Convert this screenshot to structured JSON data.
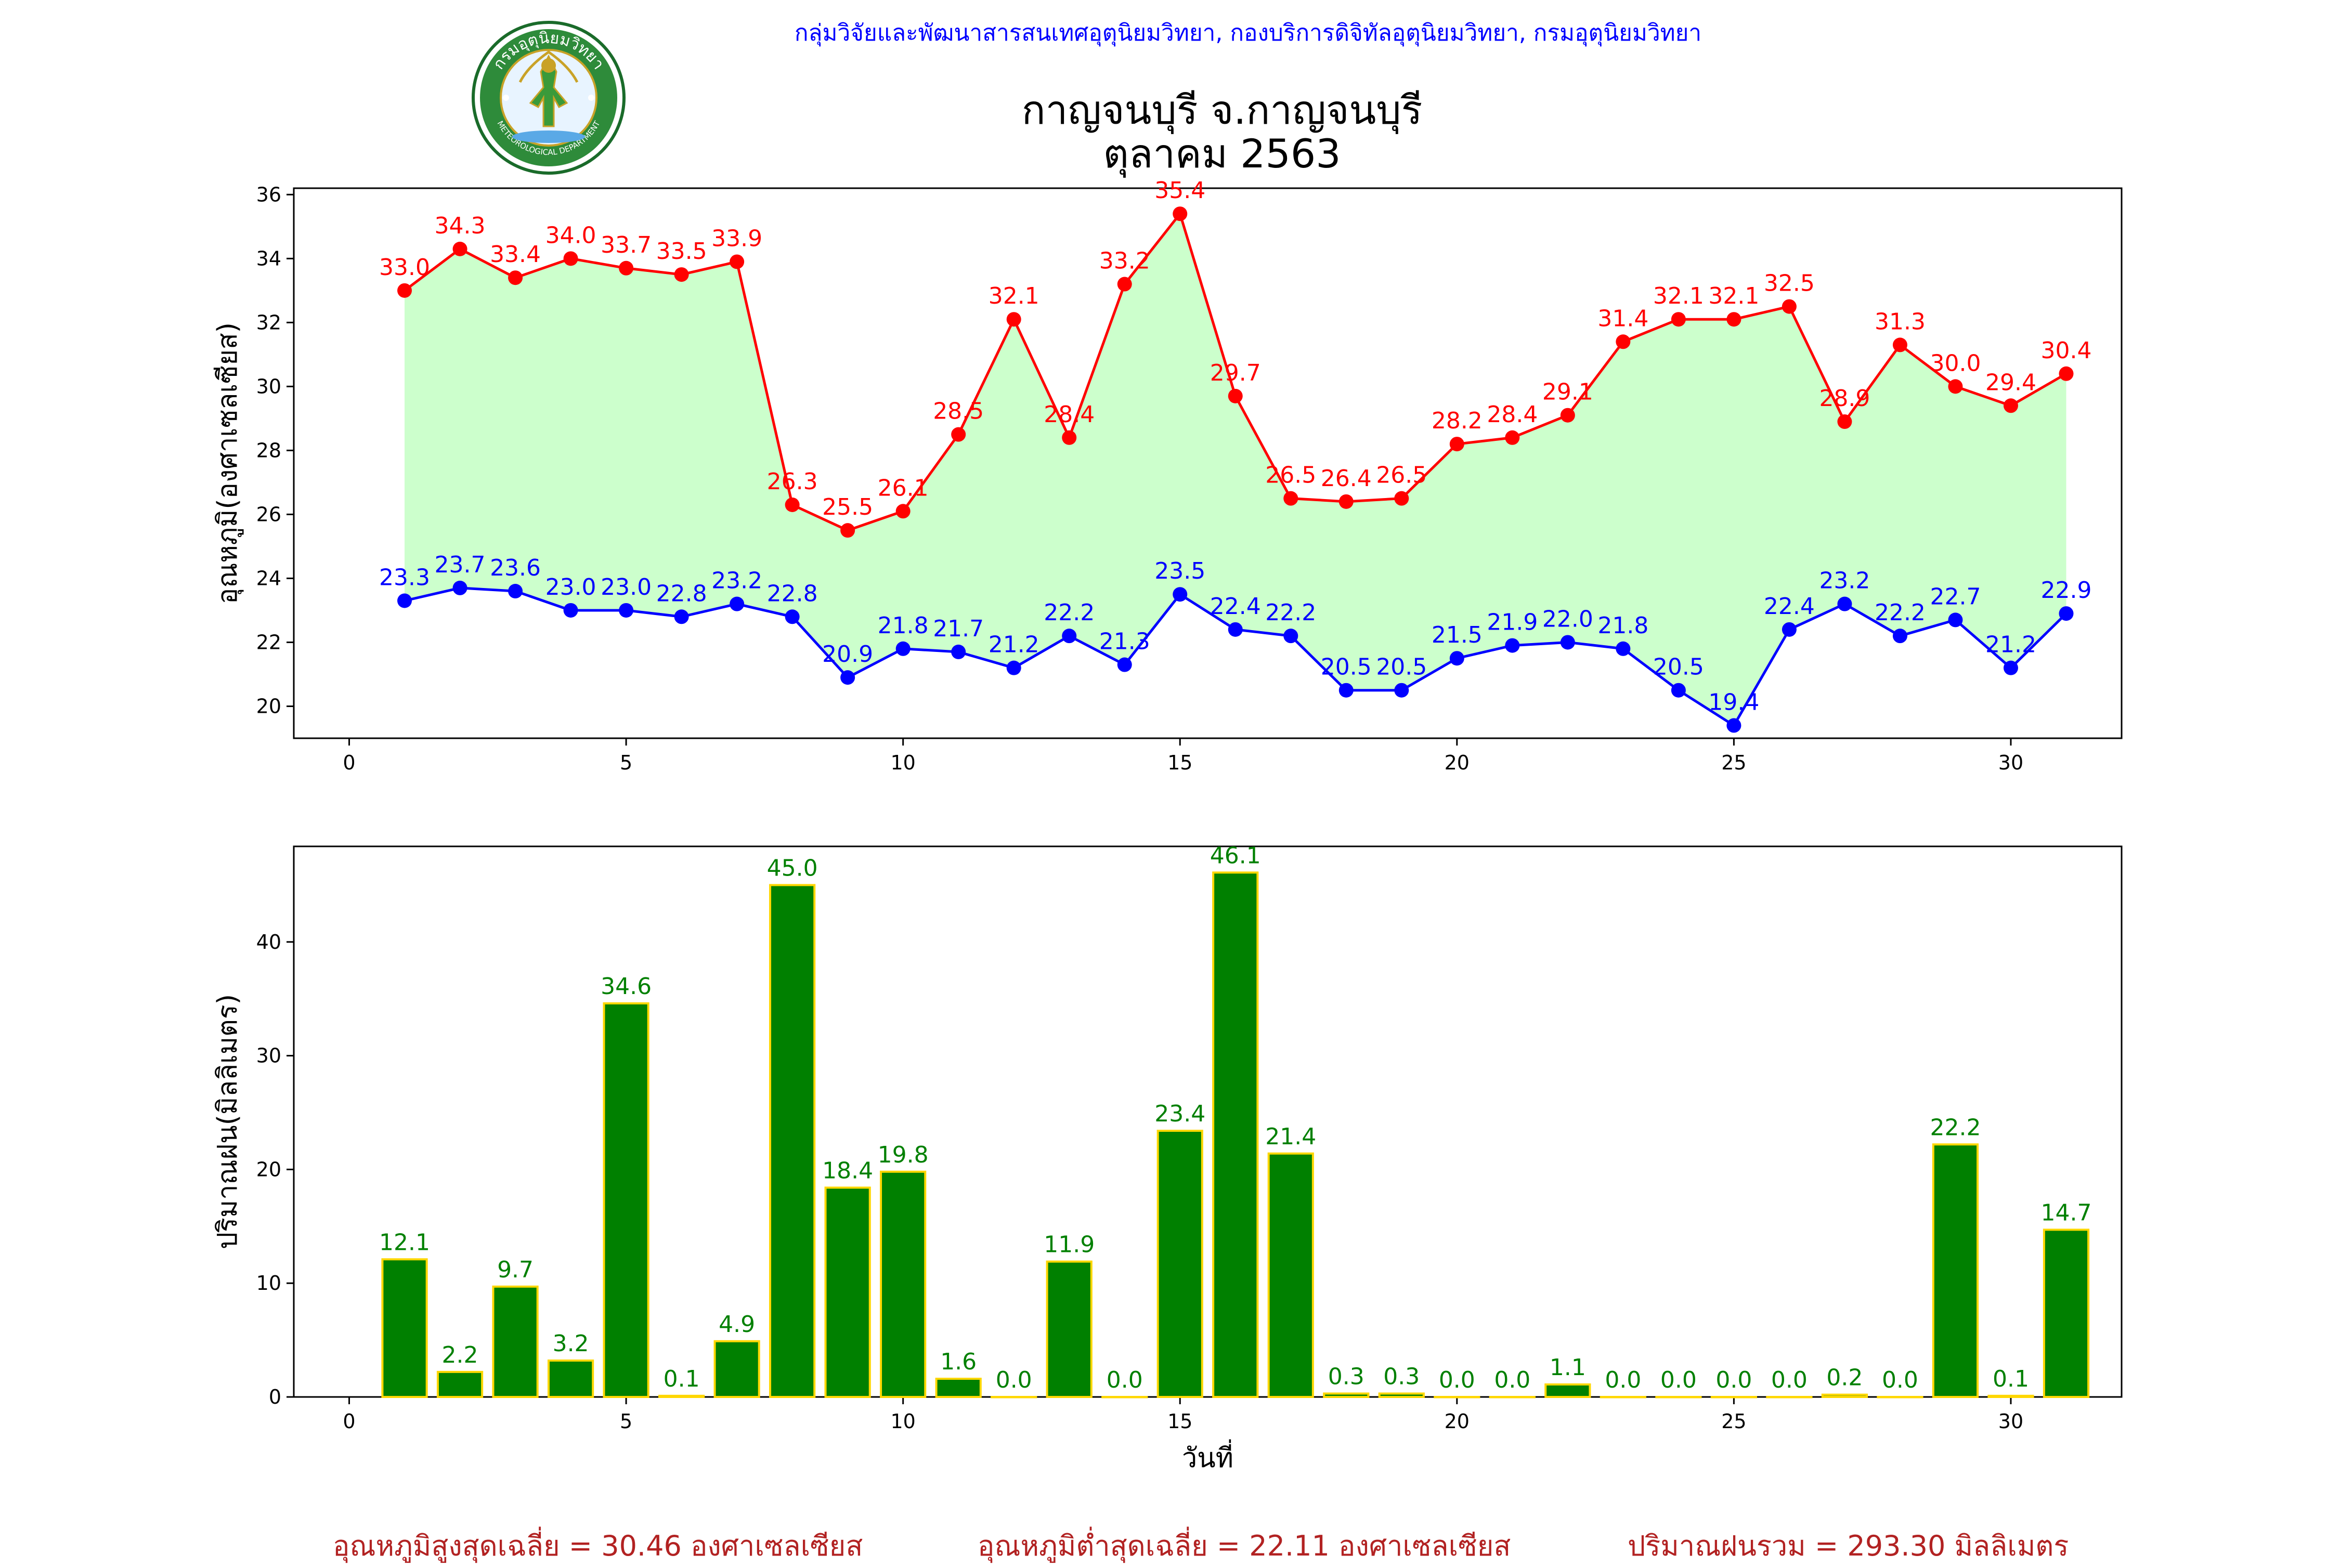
{
  "header": {
    "credit": "กลุ่มวิจัยและพัฒนาสารสนเทศอุตุนิยมวิทยา, กองบริการดิจิทัลอุตุนิยมวิทยา, กรมอุตุนิยมวิทยา",
    "logo_top_text": "กรมอุตุนิยมวิทยา",
    "logo_bottom_text": "METEOROLOGICAL DEPARTMENT"
  },
  "title": {
    "line1": "กาญจนบุรี จ.กาญจนบุรี",
    "line2": "ตุลาคม 2563"
  },
  "colors": {
    "tmax": "#ff0000",
    "tmin": "#0000ff",
    "fill": "#ccffcc",
    "rain_bar": "#008000",
    "rain_edge": "#ffd700",
    "footer": "#b22222"
  },
  "chart_data": [
    {
      "type": "line",
      "ylabel": "อุณหภูมิ(องศาเซลเซียส)",
      "xlabel": "",
      "xlim": [
        -1,
        32
      ],
      "ylim": [
        19,
        36.2
      ],
      "xticks": [
        0,
        5,
        10,
        15,
        20,
        25,
        30
      ],
      "yticks": [
        20,
        22,
        24,
        26,
        28,
        30,
        32,
        34,
        36
      ],
      "fill_between": true,
      "x": [
        1,
        2,
        3,
        4,
        5,
        6,
        7,
        8,
        9,
        10,
        11,
        12,
        13,
        14,
        15,
        16,
        17,
        18,
        19,
        20,
        21,
        22,
        23,
        24,
        25,
        26,
        27,
        28,
        29,
        30,
        31
      ],
      "series": [
        {
          "name": "",
          "key": "tmax",
          "values": [
            33.0,
            34.3,
            33.4,
            34.0,
            33.7,
            33.5,
            33.9,
            26.3,
            25.5,
            26.1,
            28.5,
            32.1,
            28.4,
            33.2,
            35.4,
            29.7,
            26.5,
            26.4,
            26.5,
            28.2,
            28.4,
            29.1,
            31.4,
            32.1,
            32.1,
            32.5,
            28.9,
            31.3,
            30.0,
            29.4,
            30.4
          ],
          "labels": [
            "33.0",
            "34.3",
            "33.4",
            "34.0",
            "33.7",
            "33.5",
            "33.9",
            "26.3",
            "25.5",
            "26.1",
            "28.5",
            "32.1",
            "28.4",
            "33.2",
            "35.4",
            "29.7",
            "26.5",
            "26.4",
            "26.5",
            "28.2",
            "28.4",
            "29.1",
            "31.4",
            "32.1",
            "32.1",
            "32.5",
            "28.9",
            "31.3",
            "30.0",
            "29.4",
            "30.4"
          ]
        },
        {
          "name": "",
          "key": "tmin",
          "values": [
            23.3,
            23.7,
            23.6,
            23.0,
            23.0,
            22.8,
            23.2,
            22.8,
            20.9,
            21.8,
            21.7,
            21.2,
            22.2,
            21.3,
            23.5,
            22.4,
            22.2,
            20.5,
            20.5,
            21.5,
            21.9,
            22.0,
            21.8,
            20.5,
            19.4,
            22.4,
            23.2,
            22.2,
            22.7,
            21.2,
            22.9
          ],
          "labels": [
            "23.3",
            "23.7",
            "23.6",
            "23.0",
            "23.0",
            "22.8",
            "23.2",
            "22.8",
            "20.9",
            "21.8",
            "21.7",
            "21.2",
            "22.2",
            "21.3",
            "23.5",
            "22.4",
            "22.2",
            "20.5",
            "20.5",
            "21.5",
            "21.9",
            "22.0",
            "21.8",
            "20.5",
            "19.4",
            "22.4",
            "23.2",
            "22.2",
            "22.7",
            "21.2",
            "22.9"
          ]
        }
      ]
    },
    {
      "type": "bar",
      "ylabel": "ปริมาณฝน(มิลลิเมตร)",
      "xlabel": "วันที่",
      "xlim": [
        -1,
        32
      ],
      "ylim": [
        0,
        48.4
      ],
      "xticks": [
        0,
        5,
        10,
        15,
        20,
        25,
        30
      ],
      "yticks": [
        0,
        10,
        20,
        30,
        40
      ],
      "categories": [
        1,
        2,
        3,
        4,
        5,
        6,
        7,
        8,
        9,
        10,
        11,
        12,
        13,
        14,
        15,
        16,
        17,
        18,
        19,
        20,
        21,
        22,
        23,
        24,
        25,
        26,
        27,
        28,
        29,
        30,
        31
      ],
      "values": [
        12.1,
        2.2,
        9.7,
        3.2,
        34.6,
        0.1,
        4.9,
        45.0,
        18.4,
        19.8,
        1.6,
        0.0,
        11.9,
        0.0,
        23.4,
        46.1,
        21.4,
        0.3,
        0.3,
        0.0,
        0.0,
        1.1,
        0.0,
        0.0,
        0.0,
        0.0,
        0.2,
        0.0,
        22.2,
        0.1,
        14.7
      ],
      "labels": [
        "12.1",
        "2.2",
        "9.7",
        "3.2",
        "34.6",
        "0.1",
        "4.9",
        "45.0",
        "18.4",
        "19.8",
        "1.6",
        "0.0",
        "11.9",
        "0.0",
        "23.4",
        "46.1",
        "21.4",
        "0.3",
        "0.3",
        "0.0",
        "0.0",
        "1.1",
        "0.0",
        "0.0",
        "0.0",
        "0.0",
        "0.2",
        "0.0",
        "22.2",
        "0.1",
        "14.7"
      ]
    }
  ],
  "footer": {
    "tmax_avg": "อุณหภูมิสูงสุดเฉลี่ย = 30.46 องศาเซลเซียส",
    "tmin_avg": "อุณหภูมิต่ำสุดเฉลี่ย = 22.11 องศาเซลเซียส",
    "rain_total": "ปริมาณฝนรวม = 293.30 มิลลิเมตร"
  }
}
